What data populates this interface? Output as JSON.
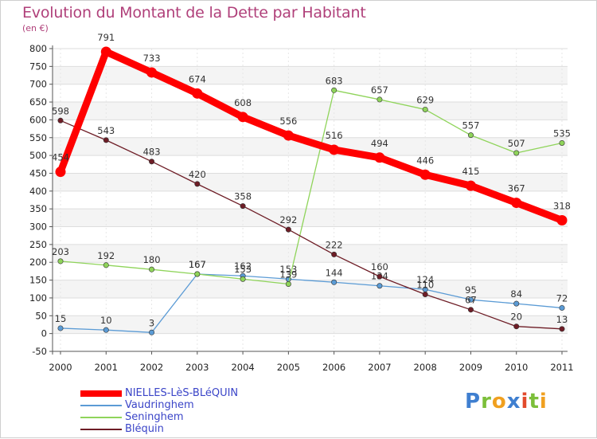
{
  "chart_data": {
    "type": "line",
    "title": "Evolution du Montant de la Dette par Habitant",
    "unit_label": "(en €)",
    "xlabel": "",
    "ylabel": "",
    "x": [
      "2000",
      "2001",
      "2002",
      "2003",
      "2004",
      "2005",
      "2006",
      "2007",
      "2008",
      "2009",
      "2010",
      "2011"
    ],
    "ylim": [
      -50,
      800
    ],
    "yticks": [
      -50,
      0,
      50,
      100,
      150,
      200,
      250,
      300,
      350,
      400,
      450,
      500,
      550,
      600,
      650,
      700,
      750,
      800
    ],
    "grid": true,
    "legend_position": "bottom-left",
    "series": [
      {
        "name": "NIELLES-LèS-BLéQUIN",
        "color": "#ff0000",
        "emphasis": true,
        "values": [
          454,
          791,
          733,
          674,
          608,
          556,
          516,
          494,
          446,
          415,
          367,
          318
        ]
      },
      {
        "name": "Vaudringhem",
        "color": "#5b9bd5",
        "emphasis": false,
        "values": [
          15,
          10,
          3,
          167,
          162,
          153,
          144,
          134,
          124,
          95,
          84,
          72
        ]
      },
      {
        "name": "Seninghem",
        "color": "#8fd45a",
        "emphasis": false,
        "values": [
          203,
          192,
          180,
          167,
          153,
          139,
          683,
          657,
          629,
          557,
          507,
          535
        ]
      },
      {
        "name": "Bléquin",
        "color": "#6e1d26",
        "emphasis": false,
        "values": [
          598,
          543,
          483,
          420,
          358,
          292,
          222,
          160,
          110,
          67,
          20,
          13
        ]
      }
    ]
  },
  "brand": "Proxiti"
}
